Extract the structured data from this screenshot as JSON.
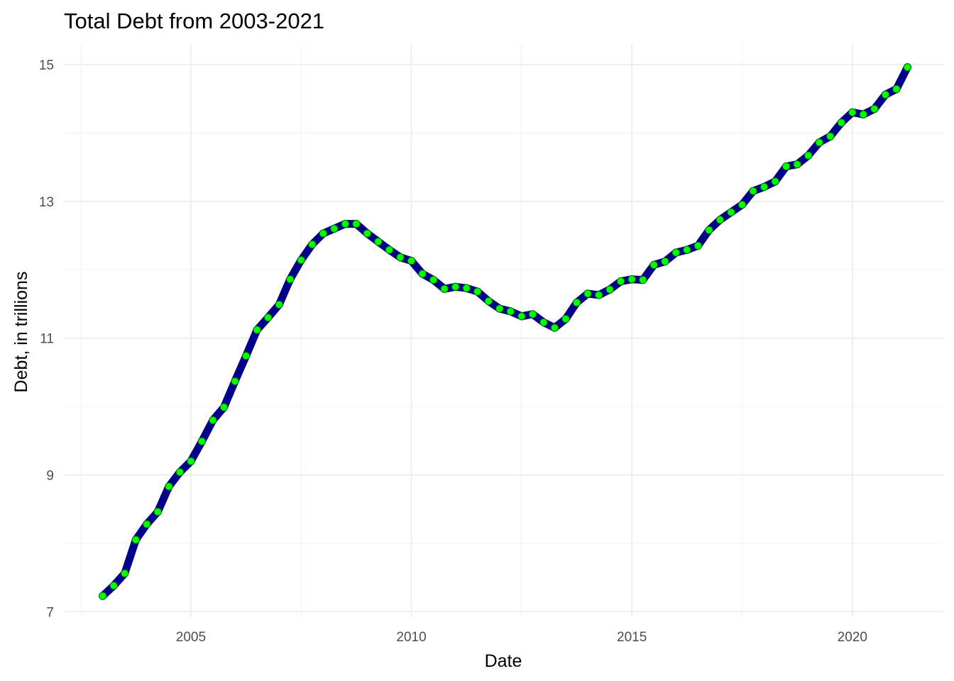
{
  "chart_data": {
    "type": "line",
    "title": "Total Debt from 2003-2021",
    "xlabel": "Date",
    "ylabel": "Debt, in trillions",
    "xlim": [
      2002.12,
      2022.08
    ],
    "ylim": [
      6.92,
      15.3
    ],
    "x_ticks": [
      2005,
      2010,
      2015,
      2020
    ],
    "x_tick_labels": [
      "2005",
      "2010",
      "2015",
      "2020"
    ],
    "y_ticks": [
      7,
      9,
      11,
      13,
      15
    ],
    "y_tick_labels": [
      "7",
      "9",
      "11",
      "13",
      "15"
    ],
    "grid": true,
    "legend": "none",
    "line_color": "#00008b",
    "point_fill": "#00ff00",
    "point_stroke": "#006400",
    "series": [
      {
        "x": [
          "2003-Q1",
          "2003-Q2",
          "2003-Q3",
          "2003-Q4",
          "2004-Q1",
          "2004-Q2",
          "2004-Q3",
          "2004-Q4",
          "2005-Q1",
          "2005-Q2",
          "2005-Q3",
          "2005-Q4",
          "2006-Q1",
          "2006-Q2",
          "2006-Q3",
          "2006-Q4",
          "2007-Q1",
          "2007-Q2",
          "2007-Q3",
          "2007-Q4",
          "2008-Q1",
          "2008-Q2",
          "2008-Q3",
          "2008-Q4",
          "2009-Q1",
          "2009-Q2",
          "2009-Q3",
          "2009-Q4",
          "2010-Q1",
          "2010-Q2",
          "2010-Q3",
          "2010-Q4",
          "2011-Q1",
          "2011-Q2",
          "2011-Q3",
          "2011-Q4",
          "2012-Q1",
          "2012-Q2",
          "2012-Q3",
          "2012-Q4",
          "2013-Q1",
          "2013-Q2",
          "2013-Q3",
          "2013-Q4",
          "2014-Q1",
          "2014-Q2",
          "2014-Q3",
          "2014-Q4",
          "2015-Q1",
          "2015-Q2",
          "2015-Q3",
          "2015-Q4",
          "2016-Q1",
          "2016-Q2",
          "2016-Q3",
          "2016-Q4",
          "2017-Q1",
          "2017-Q2",
          "2017-Q3",
          "2017-Q4",
          "2018-Q1",
          "2018-Q2",
          "2018-Q3",
          "2018-Q4",
          "2019-Q1",
          "2019-Q2",
          "2019-Q3",
          "2019-Q4",
          "2020-Q1",
          "2020-Q2",
          "2020-Q3",
          "2020-Q4",
          "2021-Q1",
          "2021-Q2"
        ],
        "values": [
          7.23,
          7.38,
          7.56,
          8.05,
          8.28,
          8.46,
          8.83,
          9.04,
          9.2,
          9.49,
          9.8,
          9.99,
          10.37,
          10.74,
          11.12,
          11.3,
          11.49,
          11.86,
          12.14,
          12.37,
          12.53,
          12.6,
          12.67,
          12.67,
          12.53,
          12.41,
          12.29,
          12.18,
          12.13,
          11.94,
          11.85,
          11.72,
          11.75,
          11.73,
          11.68,
          11.54,
          11.43,
          11.39,
          11.32,
          11.35,
          11.23,
          11.15,
          11.28,
          11.52,
          11.65,
          11.63,
          11.71,
          11.83,
          11.86,
          11.85,
          12.07,
          12.12,
          12.25,
          12.29,
          12.35,
          12.58,
          12.73,
          12.84,
          12.95,
          13.15,
          13.21,
          13.29,
          13.51,
          13.54,
          13.67,
          13.86,
          13.95,
          14.15,
          14.3,
          14.27,
          14.35,
          14.56,
          14.64,
          14.96
        ]
      }
    ]
  }
}
